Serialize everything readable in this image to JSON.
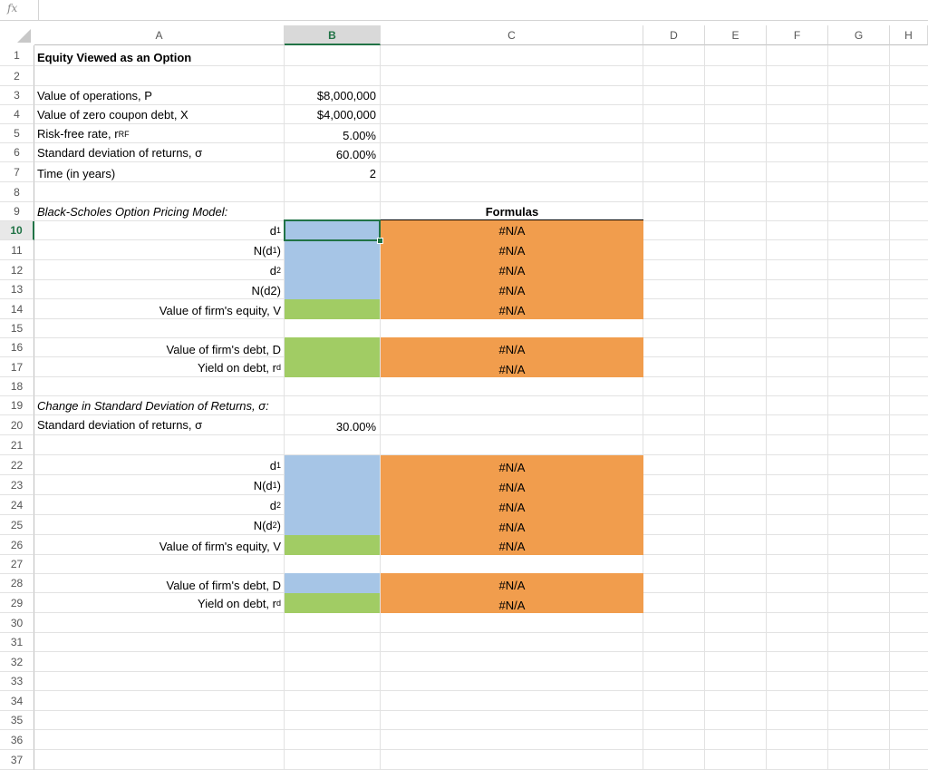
{
  "formula_bar": {
    "icon": "fx-icon",
    "content": ""
  },
  "columns": [
    "A",
    "B",
    "C",
    "D",
    "E",
    "F",
    "G",
    "H"
  ],
  "selected_column": "B",
  "rows": [
    "1",
    "2",
    "3",
    "4",
    "5",
    "6",
    "7",
    "8",
    "9",
    "10",
    "11",
    "12",
    "13",
    "14",
    "15",
    "16",
    "17",
    "18",
    "19",
    "20",
    "21",
    "22",
    "23",
    "24",
    "25",
    "26",
    "27",
    "28",
    "29",
    "30",
    "31",
    "32",
    "33",
    "34",
    "35",
    "36",
    "37"
  ],
  "selected_row": "10",
  "colors": {
    "input_blue": "#a6c5e6",
    "output_green": "#a1cc64",
    "formula_orange": "#f19d4d",
    "excel_green": "#217346"
  },
  "cells": {
    "A1": "Equity Viewed as an Option",
    "A3": "Value of operations, P",
    "B3": "$8,000,000",
    "A4": "Value of zero coupon debt, X",
    "B4": "$4,000,000",
    "A5_main": "Risk-free rate, r",
    "A5_sub": "RF",
    "B5": "5.00%",
    "A6": "Standard deviation of returns, σ",
    "B6": "60.00%",
    "A7": "Time (in years)",
    "B7": "2",
    "A9": "Black-Scholes Option Pricing Model:",
    "C9": "Formulas",
    "A10_main": "d",
    "A10_sub": "1",
    "C10": "#N/A",
    "A11_main": "N(d",
    "A11_sub": "1",
    "A11_end": ")",
    "C11": "#N/A",
    "A12_main": "d",
    "A12_sub": "2",
    "C12": "#N/A",
    "A13": "N(d2)",
    "C13": "#N/A",
    "A14": "Value of firm's equity, V",
    "C14": "#N/A",
    "A16": "Value of firm's debt, D",
    "C16": "#N/A",
    "A17_main": "Yield on debt, r",
    "A17_sub": "d",
    "C17": "#N/A",
    "A19": "Change in Standard Deviation of Returns, σ:",
    "A20": "Standard deviation of returns, σ",
    "B20": "30.00%",
    "A22_main": "d",
    "A22_sub": "1",
    "C22": "#N/A",
    "A23_main": "N(d",
    "A23_sub": "1",
    "A23_end": ")",
    "C23": "#N/A",
    "A24_main": "d",
    "A24_sub": "2",
    "C24": "#N/A",
    "A25_main": "N(d",
    "A25_sub": "2",
    "A25_end": ")",
    "C25": "#N/A",
    "A26": "Value of firm's equity, V",
    "C26": "#N/A",
    "A28": "Value of firm's debt, D",
    "C28": "#N/A",
    "A29_main": "Yield on debt, r",
    "A29_sub": "d",
    "C29": "#N/A"
  }
}
